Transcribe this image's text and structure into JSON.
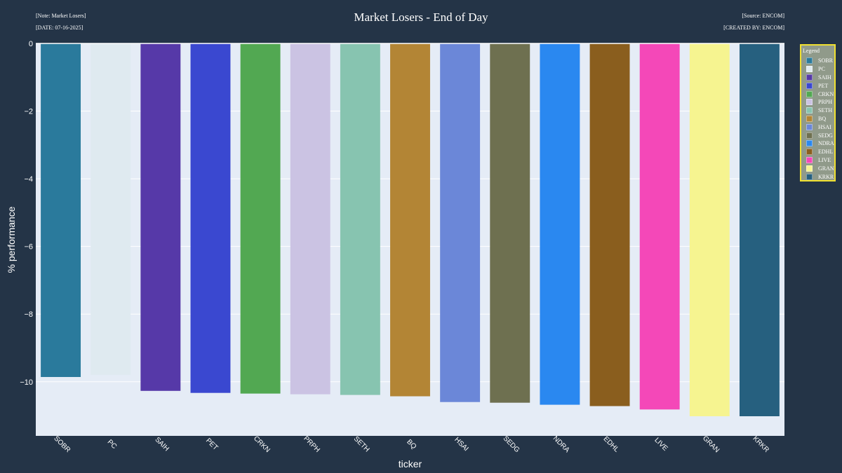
{
  "header": {
    "title": "Market Losers - End of Day",
    "note": "[Note: Market Losers]",
    "date": "[DATE: 07-16-2025]",
    "source": "[Source: ENCOM]",
    "created_by": "[CREATED BY: ENCOM]"
  },
  "legend": {
    "title": "Legend"
  },
  "colors": {
    "page_background": "#243447",
    "plot_background": "#e5ecf6",
    "legend_background": "#909a8a",
    "legend_border": "#f0e030"
  },
  "chart_data": {
    "type": "bar",
    "title": "Market Losers - End of Day",
    "xlabel": "ticker",
    "ylabel": "% performance",
    "ylim": [
      -11.6,
      0
    ],
    "yticks": [
      0,
      -2,
      -4,
      -6,
      -8,
      -10
    ],
    "ytick_labels": [
      "0",
      "−2",
      "−4",
      "−6",
      "−8",
      "−10"
    ],
    "grid": true,
    "legend_position": "right",
    "categories": [
      "SOBR",
      "PC",
      "SAIH",
      "PET",
      "CRKN",
      "PRPH",
      "SETH",
      "BQ",
      "HSAI",
      "SEDG",
      "NDRA",
      "EDHL",
      "LIVE",
      "GRAN",
      "KRKR"
    ],
    "values": [
      -9.86,
      -9.8,
      -10.27,
      -10.33,
      -10.35,
      -10.37,
      -10.39,
      -10.43,
      -10.6,
      -10.62,
      -10.68,
      -10.72,
      -10.82,
      -11.02,
      -11.02
    ],
    "colors": [
      "#2a7a9c",
      "#dfeaf0",
      "#5639a8",
      "#3a48d0",
      "#52a852",
      "#cbc3e3",
      "#87c4b0",
      "#b38535",
      "#6b87d8",
      "#6e7050",
      "#2a88f0",
      "#8a5e1e",
      "#f448b8",
      "#f6f490",
      "#26607f"
    ]
  }
}
